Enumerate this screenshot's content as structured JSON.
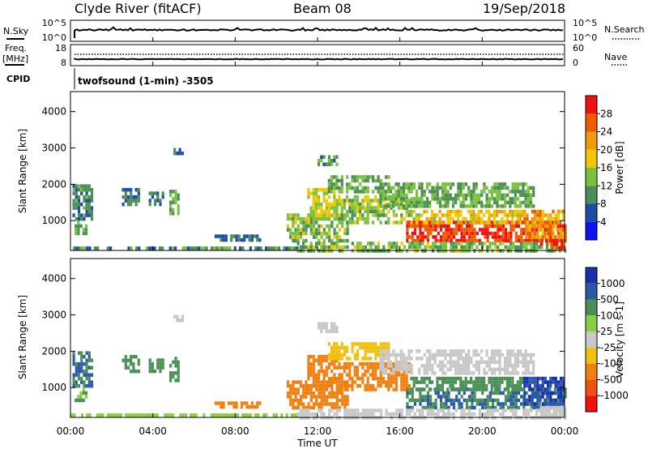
{
  "header": {
    "radar": "Clyde River (fitACF)",
    "beam": "Beam 08",
    "date": "19/Sep/2018"
  },
  "nsky_panel": {
    "left_label": "N.Sky",
    "left_ticks": [
      "10^5",
      "10^0"
    ],
    "right_ticks": [
      "10^5",
      "10^0"
    ],
    "right_label": "N.Search"
  },
  "freq_panel": {
    "left_label_1": "Freq.",
    "left_label_2": "[MHz]",
    "left_ticks": [
      "18",
      "8"
    ],
    "right_ticks": [
      "60",
      "0"
    ],
    "right_label": "Nave",
    "cpid_label": "CPID",
    "cpid_text": "twofsound (1-min) -3505"
  },
  "x_axis": {
    "label": "Time UT",
    "ticks": [
      "00:00",
      "04:00",
      "08:00",
      "12:00",
      "16:00",
      "20:00",
      "00:00"
    ]
  },
  "colors": {
    "power_scale": [
      "#0a14f0",
      "#1e4aa8",
      "#4b8f53",
      "#7cc040",
      "#f0c800",
      "#f09a10",
      "#f05a00",
      "#f01010"
    ],
    "velocity_scale": [
      "#1a2fb0",
      "#2a59a8",
      "#4a8f55",
      "#8acd40",
      "#c8c8c8",
      "#f0c010",
      "#f08010",
      "#f05010",
      "#f01010"
    ]
  },
  "chart_data": [
    {
      "type": "heatmap",
      "title": "Power",
      "ylabel": "Slant Range [km]",
      "xlabel": "Time UT",
      "xlim": [
        0,
        24
      ],
      "ylim": [
        180,
        4550
      ],
      "y_ticks": [
        1000,
        2000,
        3000,
        4000
      ],
      "colorbar": {
        "label": "Power [dB]",
        "range": [
          0,
          32
        ],
        "ticks": [
          4,
          8,
          12,
          16,
          20,
          24,
          28
        ]
      },
      "patches": [
        {
          "t0": 0.1,
          "t1": 1.0,
          "r0": 1000,
          "r1": 2000,
          "v": 9
        },
        {
          "t0": 0.2,
          "t1": 0.8,
          "r0": 600,
          "r1": 1000,
          "v": 12
        },
        {
          "t0": 2.5,
          "t1": 3.3,
          "r0": 1450,
          "r1": 1900,
          "v": 8
        },
        {
          "t0": 3.8,
          "t1": 4.5,
          "r0": 1400,
          "r1": 1800,
          "v": 9
        },
        {
          "t0": 4.8,
          "t1": 5.3,
          "r0": 1150,
          "r1": 1850,
          "v": 12
        },
        {
          "t0": 5.0,
          "t1": 5.4,
          "r0": 2850,
          "r1": 3000,
          "v": 8
        },
        {
          "t0": 0,
          "t1": 11,
          "r0": 200,
          "r1": 290,
          "v": 10
        },
        {
          "t0": 7.0,
          "t1": 9.2,
          "r0": 450,
          "r1": 620,
          "v": 8
        },
        {
          "t0": 10.5,
          "t1": 13.5,
          "r0": 400,
          "r1": 1200,
          "v": 13
        },
        {
          "t0": 11.5,
          "t1": 13.0,
          "r0": 1000,
          "r1": 1900,
          "v": 16
        },
        {
          "t0": 12.0,
          "t1": 13.0,
          "r0": 2550,
          "r1": 2800,
          "v": 10
        },
        {
          "t0": 12.5,
          "t1": 15.5,
          "r0": 1800,
          "r1": 2250,
          "v": 12
        },
        {
          "t0": 13.0,
          "t1": 16.5,
          "r0": 900,
          "r1": 1700,
          "v": 14
        },
        {
          "t0": 15.0,
          "t1": 22.5,
          "r0": 1400,
          "r1": 2050,
          "v": 12
        },
        {
          "t0": 16.3,
          "t1": 24.0,
          "r0": 450,
          "r1": 1000,
          "v": 28
        },
        {
          "t0": 16.5,
          "t1": 22.0,
          "r0": 900,
          "r1": 1300,
          "v": 19
        },
        {
          "t0": 11.0,
          "t1": 24.0,
          "r0": 200,
          "r1": 420,
          "v": 13
        },
        {
          "t0": 22.8,
          "t1": 24.0,
          "r0": 200,
          "r1": 500,
          "v": 30
        },
        {
          "t0": 22.0,
          "t1": 24.0,
          "r0": 500,
          "r1": 1300,
          "v": 22
        }
      ]
    },
    {
      "type": "heatmap",
      "title": "Velocity",
      "ylabel": "Slant Range [km]",
      "xlabel": "Time UT",
      "xlim": [
        0,
        24
      ],
      "ylim": [
        180,
        4550
      ],
      "y_ticks": [
        1000,
        2000,
        3000,
        4000
      ],
      "colorbar": {
        "label": "Velocity [m s-1]",
        "ticks": [
          "1000",
          "500",
          "100",
          "25",
          "-25",
          "-100",
          "-500",
          "-1000"
        ]
      },
      "patches": [
        {
          "t0": 0.1,
          "t1": 1.0,
          "r0": 1000,
          "r1": 2000,
          "v": 500
        },
        {
          "t0": 0.2,
          "t1": 0.8,
          "r0": 600,
          "r1": 1000,
          "v": 100
        },
        {
          "t0": 2.5,
          "t1": 3.3,
          "r0": 1450,
          "r1": 1900,
          "v": 300
        },
        {
          "t0": 3.8,
          "t1": 4.5,
          "r0": 1400,
          "r1": 1800,
          "v": 300
        },
        {
          "t0": 4.8,
          "t1": 5.3,
          "r0": 1150,
          "r1": 1850,
          "v": 200
        },
        {
          "t0": 5.0,
          "t1": 5.4,
          "r0": 2850,
          "r1": 3000,
          "v": 0
        },
        {
          "t0": 0,
          "t1": 11,
          "r0": 200,
          "r1": 290,
          "v": 60
        },
        {
          "t0": 7.0,
          "t1": 9.2,
          "r0": 450,
          "r1": 620,
          "v": -150
        },
        {
          "t0": 10.5,
          "t1": 13.5,
          "r0": 400,
          "r1": 1200,
          "v": -200
        },
        {
          "t0": 11.5,
          "t1": 13.0,
          "r0": 1000,
          "r1": 1900,
          "v": -300
        },
        {
          "t0": 12.0,
          "t1": 13.0,
          "r0": 2550,
          "r1": 2800,
          "v": 0
        },
        {
          "t0": 12.5,
          "t1": 15.5,
          "r0": 1800,
          "r1": 2250,
          "v": -60
        },
        {
          "t0": 13.0,
          "t1": 16.5,
          "r0": 900,
          "r1": 1700,
          "v": -200
        },
        {
          "t0": 15.0,
          "t1": 22.5,
          "r0": 1400,
          "r1": 2050,
          "v": 0
        },
        {
          "t0": 16.3,
          "t1": 24.0,
          "r0": 450,
          "r1": 1000,
          "v": 500
        },
        {
          "t0": 16.5,
          "t1": 22.0,
          "r0": 900,
          "r1": 1300,
          "v": 300
        },
        {
          "t0": 11.0,
          "t1": 24.0,
          "r0": 200,
          "r1": 420,
          "v": 0
        },
        {
          "t0": 22.8,
          "t1": 24.0,
          "r0": 200,
          "r1": 500,
          "v": 0
        },
        {
          "t0": 22.0,
          "t1": 24.0,
          "r0": 500,
          "r1": 1300,
          "v": 1000
        }
      ]
    }
  ]
}
